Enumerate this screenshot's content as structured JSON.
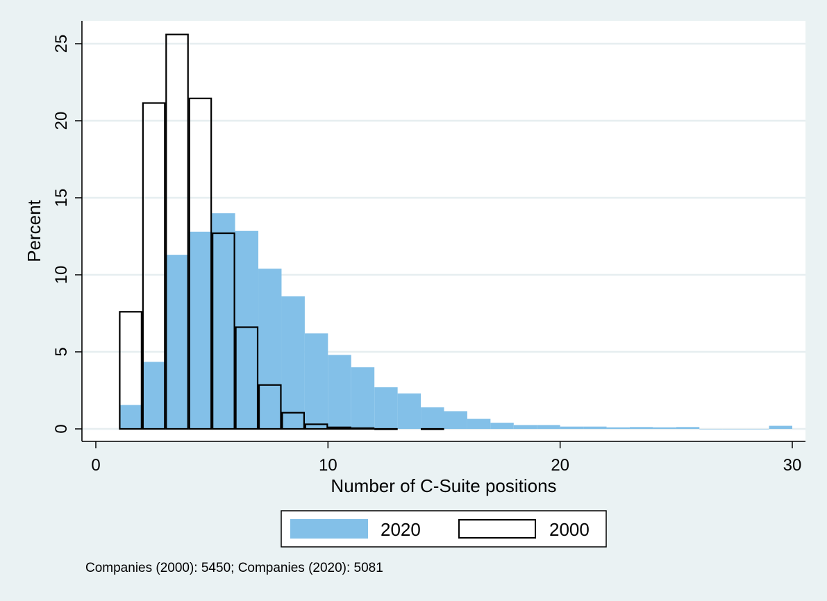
{
  "chart_data": {
    "type": "bar",
    "xlabel": "Number of C-Suite positions",
    "ylabel": "Percent",
    "xlim": [
      0,
      30
    ],
    "ylim": [
      0,
      25
    ],
    "xticks": [
      "0",
      "10",
      "20",
      "30"
    ],
    "yticks": [
      "0",
      "5",
      "10",
      "15",
      "20",
      "25"
    ],
    "grid": "horizontal",
    "legend_position": "bottom",
    "note": "Companies (2000): 5450; Companies (2020): 5081",
    "colors": {
      "2020": "#83c0e8",
      "2000": "none",
      "background": "#eaf2f3",
      "plot": "#ffffff"
    },
    "series": [
      {
        "name": "2020",
        "style": "filled",
        "bins": [
          {
            "x": 1,
            "value": 1.55
          },
          {
            "x": 2,
            "value": 4.35
          },
          {
            "x": 3,
            "value": 11.3
          },
          {
            "x": 4,
            "value": 12.8
          },
          {
            "x": 5,
            "value": 14.0
          },
          {
            "x": 6,
            "value": 12.85
          },
          {
            "x": 7,
            "value": 10.4
          },
          {
            "x": 8,
            "value": 8.6
          },
          {
            "x": 9,
            "value": 6.2
          },
          {
            "x": 10,
            "value": 4.8
          },
          {
            "x": 11,
            "value": 4.0
          },
          {
            "x": 12,
            "value": 2.7
          },
          {
            "x": 13,
            "value": 2.3
          },
          {
            "x": 14,
            "value": 1.4
          },
          {
            "x": 15,
            "value": 1.15
          },
          {
            "x": 16,
            "value": 0.65
          },
          {
            "x": 17,
            "value": 0.4
          },
          {
            "x": 18,
            "value": 0.25
          },
          {
            "x": 19,
            "value": 0.25
          },
          {
            "x": 20,
            "value": 0.15
          },
          {
            "x": 21,
            "value": 0.15
          },
          {
            "x": 22,
            "value": 0.1
          },
          {
            "x": 23,
            "value": 0.12
          },
          {
            "x": 24,
            "value": 0.1
          },
          {
            "x": 25,
            "value": 0.12
          },
          {
            "x": 26,
            "value": 0.0
          },
          {
            "x": 27,
            "value": 0.0
          },
          {
            "x": 28,
            "value": 0.0
          },
          {
            "x": 29,
            "value": 0.2
          }
        ]
      },
      {
        "name": "2000",
        "style": "outline",
        "bins": [
          {
            "x": 1,
            "value": 7.6
          },
          {
            "x": 2,
            "value": 21.15
          },
          {
            "x": 3,
            "value": 25.6
          },
          {
            "x": 4,
            "value": 21.45
          },
          {
            "x": 5,
            "value": 12.7
          },
          {
            "x": 6,
            "value": 6.6
          },
          {
            "x": 7,
            "value": 2.85
          },
          {
            "x": 8,
            "value": 1.05
          },
          {
            "x": 9,
            "value": 0.3
          },
          {
            "x": 10,
            "value": 0.1
          },
          {
            "x": 11,
            "value": 0.05
          },
          {
            "x": 12,
            "value": 0.0
          },
          {
            "x": 14,
            "value": 0.0
          }
        ]
      }
    ]
  }
}
